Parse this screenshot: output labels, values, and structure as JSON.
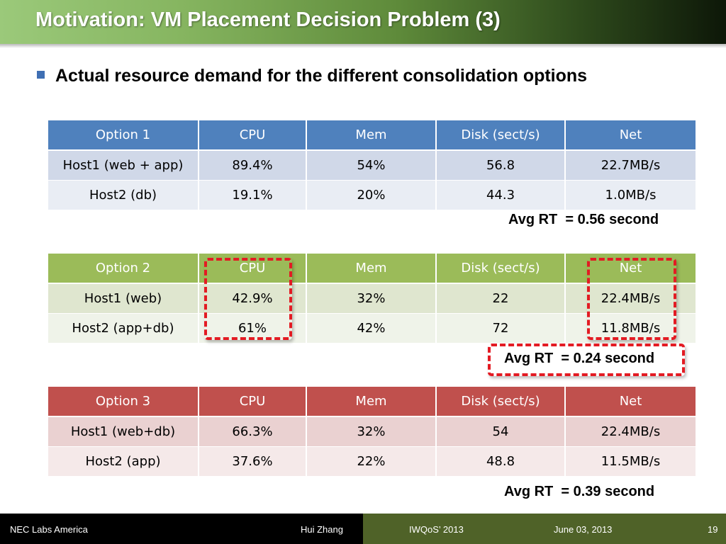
{
  "title": "Motivation: VM Placement Decision Problem (3)",
  "bullet": "Actual resource demand for the different consolidation options",
  "tables": [
    {
      "headers": [
        "Option 1",
        "CPU",
        "Mem",
        "Disk (sect/s)",
        "Net"
      ],
      "rows": [
        [
          "Host1 (web + app)",
          "89.4%",
          "54%",
          "56.8",
          "22.7MB/s"
        ],
        [
          "Host2 (db)",
          "19.1%",
          "20%",
          "44.3",
          "1.0MB/s"
        ]
      ],
      "avg_rt": "Avg RT  = 0.56 second",
      "header_color": "#4f81bd"
    },
    {
      "headers": [
        "Option 2",
        "CPU",
        "Mem",
        "Disk (sect/s)",
        "Net"
      ],
      "rows": [
        [
          "Host1 (web)",
          "42.9%",
          "32%",
          "22",
          "22.4MB/s"
        ],
        [
          "Host2 (app+db)",
          "61%",
          "42%",
          "72",
          "11.8MB/s"
        ]
      ],
      "avg_rt": "Avg RT  = 0.24 second",
      "header_color": "#9bbb59"
    },
    {
      "headers": [
        "Option 3",
        "CPU",
        "Mem",
        "Disk (sect/s)",
        "Net"
      ],
      "rows": [
        [
          "Host1 (web+db)",
          "66.3%",
          "32%",
          "54",
          "22.4MB/s"
        ],
        [
          "Host2 (app)",
          "37.6%",
          "22%",
          "48.8",
          "11.5MB/s"
        ]
      ],
      "avg_rt": "Avg RT  = 0.39 second",
      "header_color": "#c0504d"
    }
  ],
  "highlight_color": "#e31b23",
  "footer": {
    "org": "NEC Labs America",
    "author": "Hui Zhang",
    "conference": "IWQoS’ 2013",
    "date": "June 03, 2013",
    "page": "19"
  }
}
